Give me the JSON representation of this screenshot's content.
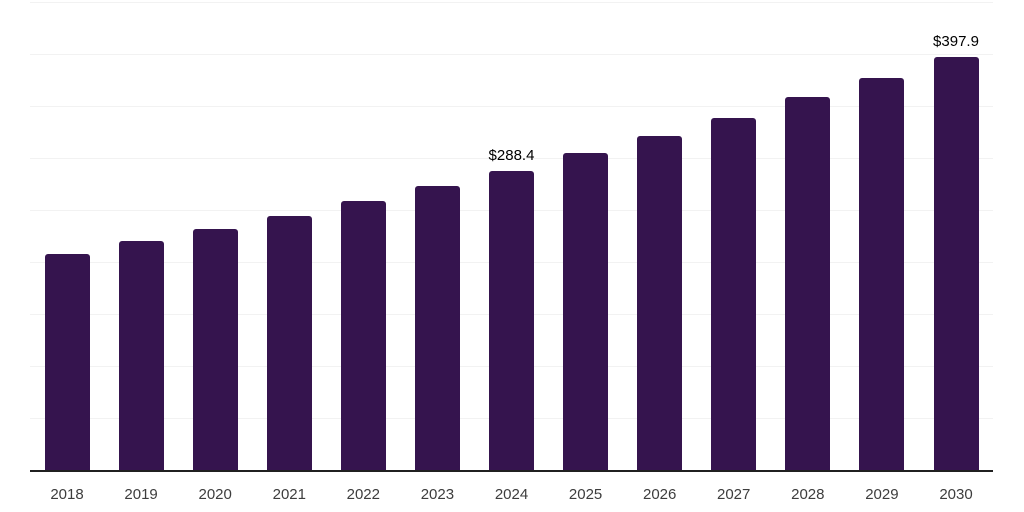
{
  "chart": {
    "background_color": "#ffffff",
    "bar_color": "#35144e",
    "gridline_color": "#f2f2f2",
    "axis_line_color": "#202020",
    "tick_label_color": "#3d3d3d",
    "data_label_color": "#000000"
  },
  "chart_data": {
    "type": "bar",
    "title": "",
    "xlabel": "",
    "ylabel": "",
    "categories": [
      "2018",
      "2019",
      "2020",
      "2021",
      "2022",
      "2023",
      "2024",
      "2025",
      "2026",
      "2027",
      "2028",
      "2029",
      "2030"
    ],
    "values": [
      208.8,
      221.1,
      232.9,
      245.6,
      259.2,
      274.1,
      288.4,
      305.5,
      322.5,
      339.5,
      359.5,
      378.0,
      397.9
    ],
    "data_labels": {
      "2024": "$288.4",
      "2030": "$397.9"
    },
    "ylim": [
      0,
      452
    ],
    "gridline_values": [
      50,
      100,
      150,
      200,
      250,
      300,
      350,
      400,
      450
    ],
    "grid": true,
    "legend": false,
    "bar_corner_radius": 3
  }
}
